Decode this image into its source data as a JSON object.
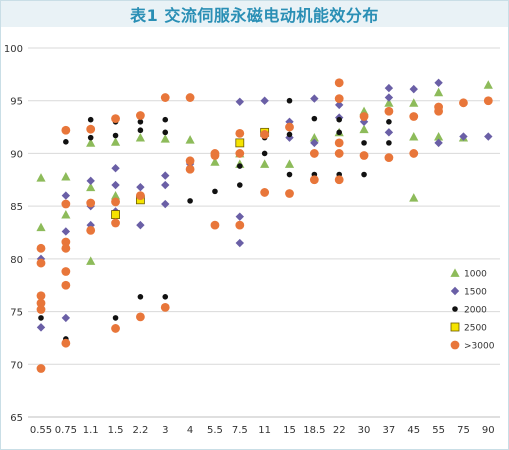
{
  "page": {
    "title": "表1 交流伺服永磁电动机能效分布"
  },
  "chart_data": {
    "type": "scatter",
    "title": "表1 交流伺服永磁电动机能效分布",
    "xlabel": "",
    "ylabel": "",
    "categories": [
      "0.55",
      "0.75",
      "1.1",
      "1.5",
      "2.2",
      "3",
      "4",
      "5.5",
      "7.5",
      "11",
      "15",
      "18.5",
      "22",
      "30",
      "37",
      "45",
      "55",
      "75",
      "90"
    ],
    "ylim": [
      65,
      100
    ],
    "yticks": [
      65,
      70,
      75,
      80,
      85,
      90,
      95,
      100
    ],
    "grid": true,
    "legend_position": "right",
    "series": [
      {
        "name": "1000",
        "marker": "triangle",
        "color": "#8dbb5a",
        "points": [
          [
            "0.55",
            87.7
          ],
          [
            "0.55",
            83.0
          ],
          [
            "0.75",
            87.8
          ],
          [
            "0.75",
            84.2
          ],
          [
            "1.1",
            91.0
          ],
          [
            "1.1",
            86.8
          ],
          [
            "1.1",
            79.8
          ],
          [
            "1.5",
            91.1
          ],
          [
            "1.5",
            86.0
          ],
          [
            "2.2",
            91.5
          ],
          [
            "3",
            91.4
          ],
          [
            "4",
            91.3
          ],
          [
            "5.5",
            89.2
          ],
          [
            "7.5",
            90.0
          ],
          [
            "7.5",
            89.0
          ],
          [
            "11",
            89.0
          ],
          [
            "15",
            89.0
          ],
          [
            "18.5",
            91.5
          ],
          [
            "22",
            92.0
          ],
          [
            "30",
            92.3
          ],
          [
            "30",
            94.0
          ],
          [
            "37",
            94.8
          ],
          [
            "45",
            94.8
          ],
          [
            "45",
            91.6
          ],
          [
            "45",
            85.8
          ],
          [
            "55",
            95.8
          ],
          [
            "55",
            91.6
          ],
          [
            "75",
            91.5
          ],
          [
            "90",
            96.5
          ]
        ]
      },
      {
        "name": "1500",
        "marker": "diamond",
        "color": "#6a5fa6",
        "points": [
          [
            "0.55",
            80.0
          ],
          [
            "0.55",
            73.5
          ],
          [
            "0.75",
            86.0
          ],
          [
            "0.75",
            82.6
          ],
          [
            "0.75",
            74.4
          ],
          [
            "1.1",
            87.4
          ],
          [
            "1.1",
            85.0
          ],
          [
            "1.1",
            83.2
          ],
          [
            "1.5",
            88.6
          ],
          [
            "1.5",
            87.0
          ],
          [
            "1.5",
            84.5
          ],
          [
            "2.2",
            86.8
          ],
          [
            "2.2",
            83.2
          ],
          [
            "3",
            87.9
          ],
          [
            "3",
            87.0
          ],
          [
            "3",
            85.2
          ],
          [
            "4",
            89.0
          ],
          [
            "7.5",
            94.9
          ],
          [
            "7.5",
            84.0
          ],
          [
            "7.5",
            81.5
          ],
          [
            "11",
            95.0
          ],
          [
            "11",
            92.0
          ],
          [
            "15",
            93.0
          ],
          [
            "15",
            91.5
          ],
          [
            "18.5",
            95.2
          ],
          [
            "18.5",
            91.0
          ],
          [
            "22",
            94.6
          ],
          [
            "22",
            93.4
          ],
          [
            "30",
            93.0
          ],
          [
            "37",
            96.2
          ],
          [
            "37",
            95.3
          ],
          [
            "37",
            94.0
          ],
          [
            "37",
            92.0
          ],
          [
            "45",
            96.1
          ],
          [
            "55",
            96.7
          ],
          [
            "55",
            91.0
          ],
          [
            "75",
            91.6
          ],
          [
            "90",
            91.6
          ]
        ]
      },
      {
        "name": "2000",
        "marker": "circle-small",
        "color": "#111111",
        "points": [
          [
            "0.55",
            74.4
          ],
          [
            "0.75",
            91.1
          ],
          [
            "0.75",
            72.4
          ],
          [
            "1.1",
            93.2
          ],
          [
            "1.1",
            91.5
          ],
          [
            "1.5",
            93.0
          ],
          [
            "1.5",
            91.7
          ],
          [
            "1.5",
            74.4
          ],
          [
            "2.2",
            93.0
          ],
          [
            "2.2",
            92.2
          ],
          [
            "2.2",
            76.4
          ],
          [
            "3",
            93.2
          ],
          [
            "3",
            92.0
          ],
          [
            "3",
            76.4
          ],
          [
            "4",
            85.5
          ],
          [
            "5.5",
            86.4
          ],
          [
            "7.5",
            88.8
          ],
          [
            "7.5",
            87.0
          ],
          [
            "11",
            91.5
          ],
          [
            "11",
            90.0
          ],
          [
            "15",
            95.0
          ],
          [
            "15",
            91.8
          ],
          [
            "15",
            88.0
          ],
          [
            "18.5",
            93.3
          ],
          [
            "18.5",
            88.0
          ],
          [
            "22",
            93.2
          ],
          [
            "22",
            92.0
          ],
          [
            "22",
            88.0
          ],
          [
            "30",
            91.0
          ],
          [
            "30",
            88.0
          ],
          [
            "37",
            93.0
          ],
          [
            "37",
            91.0
          ]
        ]
      },
      {
        "name": "2500",
        "marker": "square",
        "color": "#f5e400",
        "points": [
          [
            "1.5",
            84.2
          ],
          [
            "2.2",
            85.6
          ],
          [
            "7.5",
            91.0
          ],
          [
            "11",
            92.0
          ]
        ]
      },
      {
        "name": ">3000",
        "marker": "circle-large",
        "color": "#e8763a",
        "points": [
          [
            "0.55",
            81.0
          ],
          [
            "0.55",
            79.6
          ],
          [
            "0.55",
            76.5
          ],
          [
            "0.55",
            75.8
          ],
          [
            "0.55",
            75.2
          ],
          [
            "0.55",
            69.6
          ],
          [
            "0.75",
            92.2
          ],
          [
            "0.75",
            85.2
          ],
          [
            "0.75",
            81.6
          ],
          [
            "0.75",
            81.0
          ],
          [
            "0.75",
            78.8
          ],
          [
            "0.75",
            77.5
          ],
          [
            "0.75",
            72.0
          ],
          [
            "1.1",
            92.3
          ],
          [
            "1.1",
            85.3
          ],
          [
            "1.1",
            82.7
          ],
          [
            "1.5",
            93.3
          ],
          [
            "1.5",
            85.4
          ],
          [
            "1.5",
            83.4
          ],
          [
            "1.5",
            73.4
          ],
          [
            "2.2",
            93.6
          ],
          [
            "2.2",
            86.0
          ],
          [
            "2.2",
            74.5
          ],
          [
            "3",
            95.3
          ],
          [
            "3",
            75.4
          ],
          [
            "4",
            95.3
          ],
          [
            "4",
            89.3
          ],
          [
            "4",
            88.5
          ],
          [
            "5.5",
            90.0
          ],
          [
            "5.5",
            89.8
          ],
          [
            "5.5",
            83.2
          ],
          [
            "7.5",
            91.9
          ],
          [
            "7.5",
            90.0
          ],
          [
            "7.5",
            83.2
          ],
          [
            "11",
            86.3
          ],
          [
            "11",
            91.8
          ],
          [
            "15",
            92.5
          ],
          [
            "15",
            86.2
          ],
          [
            "18.5",
            90.0
          ],
          [
            "18.5",
            87.5
          ],
          [
            "22",
            96.7
          ],
          [
            "22",
            95.2
          ],
          [
            "22",
            91.0
          ],
          [
            "22",
            90.0
          ],
          [
            "22",
            87.5
          ],
          [
            "30",
            93.5
          ],
          [
            "30",
            89.8
          ],
          [
            "37",
            94.0
          ],
          [
            "37",
            89.6
          ],
          [
            "45",
            93.5
          ],
          [
            "45",
            90.0
          ],
          [
            "55",
            94.4
          ],
          [
            "55",
            94.0
          ],
          [
            "75",
            94.8
          ],
          [
            "90",
            95.0
          ]
        ]
      }
    ]
  }
}
